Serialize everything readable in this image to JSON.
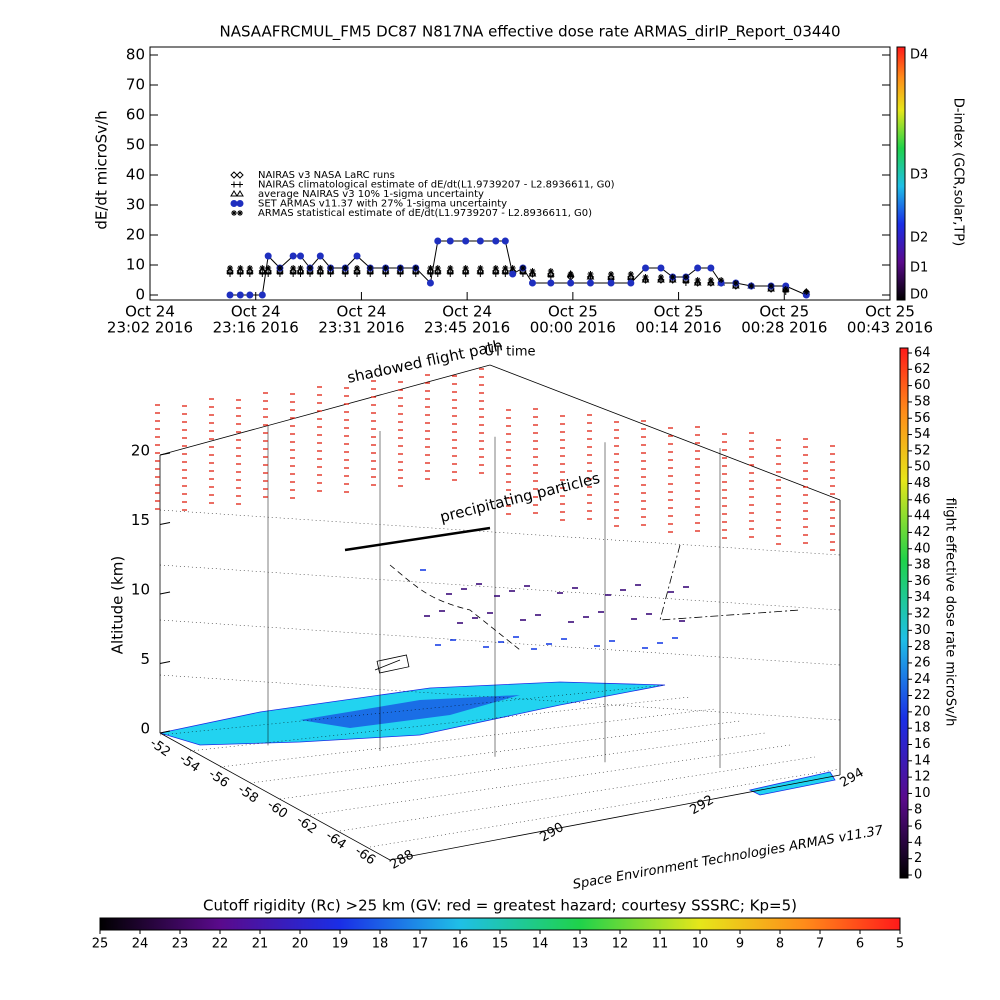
{
  "chart_data": [
    {
      "type": "scatter",
      "title": "NASAAFRCMUL_FM5 DC87 N817NA effective dose rate ARMAS_dirIP_Report_03440",
      "ylabel": "dE/dt microSv/h",
      "xlabel": "UT time",
      "xlim": [
        0,
        100.8
      ],
      "xticks": [
        {
          "value": 0,
          "label": "Oct 24"
        },
        {
          "value": 14.4,
          "label": "Oct 24"
        },
        {
          "value": 28.8,
          "label": "Oct 24"
        },
        {
          "value": 43.2,
          "label": "Oct 24"
        },
        {
          "value": 57.6,
          "label": "Oct 25"
        },
        {
          "value": 72,
          "label": "Oct 25"
        },
        {
          "value": 86.4,
          "label": "Oct 25"
        },
        {
          "value": 100.8,
          "label": "Oct 25"
        }
      ],
      "xtick_times": [
        "23:02 2016",
        "23:16 2016",
        "23:31 2016",
        "23:45 2016",
        "00:00 2016",
        "00:14 2016",
        "00:28 2016",
        "00:43 2016"
      ],
      "ylim": [
        0,
        80
      ],
      "yticks": [
        0,
        10,
        20,
        30,
        40,
        50,
        60,
        70,
        80
      ],
      "x": [
        10.9,
        12.3,
        13.6,
        15.3,
        16.1,
        17.7,
        19.5,
        20.5,
        21.8,
        23.2,
        24.6,
        26.6,
        28.2,
        30.0,
        32.1,
        34.1,
        36.2,
        38.2,
        39.2,
        40.9,
        43.0,
        45.0,
        47.1,
        48.4,
        49.4,
        50.8,
        52.1,
        54.6,
        57.3,
        60.0,
        62.8,
        65.5,
        67.5,
        69.6,
        71.2,
        73.0,
        74.6,
        76.4,
        77.8,
        79.8,
        81.9,
        84.6,
        86.6,
        89.4
      ],
      "series": [
        {
          "name": "NAIRAS v3 NASA LaRC runs",
          "marker": "diamond",
          "color": "#000000",
          "values": [
            8,
            8,
            8,
            8,
            8,
            8,
            8,
            8,
            8,
            8,
            8,
            8,
            8,
            8,
            8,
            8,
            8,
            8,
            8,
            8,
            8,
            8,
            8,
            8,
            8,
            8,
            7,
            7,
            6,
            6,
            6,
            6,
            5,
            5,
            5,
            5,
            4,
            4,
            4,
            3,
            3,
            2,
            2,
            1
          ]
        },
        {
          "name": "NAIRAS climatological estimate of dE/dt(L1.9739207 - L2.8936611, G0)",
          "marker": "plus",
          "color": "#000000",
          "values": [
            7,
            7,
            7,
            7,
            7,
            7,
            7,
            7,
            7,
            7,
            7,
            7,
            7,
            7,
            7,
            7,
            7,
            7,
            7,
            7,
            7,
            7,
            7,
            7,
            7,
            7,
            7,
            6,
            6,
            6,
            5,
            5,
            5,
            5,
            5,
            4,
            4,
            4,
            4,
            3,
            3,
            2,
            1,
            1
          ]
        },
        {
          "name": "average NAIRAS v3 10% 1-sigma uncertainty",
          "marker": "triangle",
          "color": "#000000",
          "values": [
            8,
            8,
            8,
            8,
            8,
            8,
            8,
            8,
            8,
            8,
            8,
            8,
            8,
            8,
            8,
            8,
            8,
            8,
            8,
            8,
            8,
            8,
            8,
            8,
            8,
            8,
            7,
            7,
            7,
            6,
            6,
            6,
            5,
            5,
            5,
            5,
            4,
            4,
            4,
            3,
            3,
            2,
            2,
            1
          ]
        },
        {
          "name": "SET ARMAS v11.37 with 27% 1-sigma uncertainty",
          "marker": "circle",
          "color": "#1f2fbf",
          "line": true,
          "values": [
            0,
            0,
            0,
            0,
            13,
            9,
            13,
            13,
            9,
            13,
            9,
            9,
            13,
            9,
            9,
            9,
            9,
            4,
            18,
            18,
            18,
            18,
            18,
            18,
            7,
            9,
            4,
            4,
            4,
            4,
            4,
            4,
            9,
            9,
            6,
            6,
            9,
            9,
            4,
            4,
            3,
            3,
            3,
            0
          ]
        },
        {
          "name": "ARMAS statistical estimate of dE/dt(L1.9739207 - L2.8936611, G0)",
          "marker": "asterisk",
          "color": "#000000",
          "values": [
            9,
            9,
            9,
            9,
            9,
            9,
            9,
            9,
            9,
            9,
            9,
            9,
            9,
            9,
            9,
            9,
            9,
            9,
            9,
            9,
            9,
            9,
            9,
            9,
            9,
            9,
            8,
            8,
            7,
            7,
            7,
            7,
            6,
            6,
            6,
            6,
            5,
            5,
            5,
            4,
            3,
            3,
            2,
            1
          ]
        }
      ],
      "colorbar": {
        "title": "D-index (GCR,solar,TP)",
        "labels": [
          "D4",
          "D3",
          "D2",
          "D1",
          "D0"
        ]
      }
    },
    {
      "type": "scatter3d",
      "zlabel": "Altitude (km)",
      "zlim": [
        0,
        20
      ],
      "zticks": [
        0,
        5,
        10,
        15,
        20
      ],
      "lat_ticks": [
        -52,
        -54,
        -56,
        -58,
        -60,
        -62,
        -64,
        -66
      ],
      "lon_ticks": [
        288,
        290,
        292,
        294
      ],
      "annotations": [
        "shadowed flight path",
        "precipitating particles"
      ],
      "credit": "Space Environment Technologies ARMAS v11.37",
      "colorbar": {
        "title": "flight effective dose rate microSv/h",
        "lim": [
          0,
          64
        ],
        "ticks": [
          0,
          2,
          4,
          6,
          8,
          10,
          12,
          14,
          16,
          18,
          20,
          22,
          24,
          26,
          28,
          30,
          32,
          34,
          36,
          38,
          40,
          42,
          44,
          46,
          48,
          50,
          52,
          54,
          56,
          58,
          60,
          62,
          64
        ]
      },
      "colorbar2": {
        "title": "Cutoff rigidity (Rc) >25 km (GV: red = greatest hazard; courtesy SSSRC; Kp=5)",
        "lim": [
          25,
          5
        ],
        "ticks": [
          25,
          24,
          23,
          22,
          21,
          20,
          19,
          18,
          17,
          16,
          15,
          14,
          13,
          12,
          11,
          10,
          9,
          8,
          7,
          6,
          5
        ]
      }
    }
  ]
}
